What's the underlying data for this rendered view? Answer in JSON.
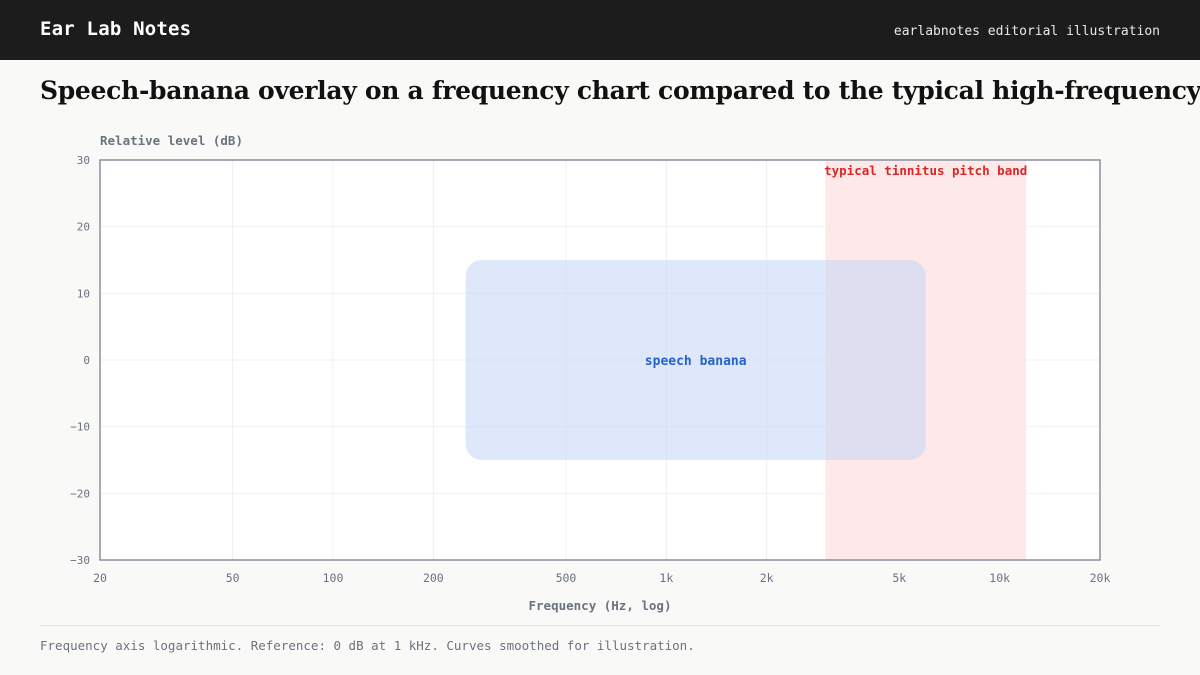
{
  "header": {
    "brand": "Ear Lab Notes",
    "tagline": "earlabnotes editorial illustration"
  },
  "title": "Speech-banana overlay on a frequency chart compared to the typical high-frequency band where tinnitus",
  "footnote": "Frequency axis logarithmic. Reference: 0 dB at 1 kHz. Curves smoothed for illustration.",
  "colors": {
    "speech_fill": "#dfe7f9",
    "speech_label": "#2563c9",
    "tinnitus_fill": "#fde8e8",
    "tinnitus_label": "#dc2626",
    "axis": "#9ca3af",
    "grid": "#eef0f3",
    "tick_text": "#6b7280"
  },
  "chart_data": {
    "type": "area",
    "xlabel": "Frequency (Hz, log)",
    "ylabel": "Relative level (dB)",
    "xscale": "log",
    "xlim": [
      20,
      20000
    ],
    "ylim": [
      -30,
      30
    ],
    "x_ticks": [
      {
        "value": 20,
        "label": "20"
      },
      {
        "value": 50,
        "label": "50"
      },
      {
        "value": 100,
        "label": "100"
      },
      {
        "value": 200,
        "label": "200"
      },
      {
        "value": 500,
        "label": "500"
      },
      {
        "value": 1000,
        "label": "1k"
      },
      {
        "value": 2000,
        "label": "2k"
      },
      {
        "value": 5000,
        "label": "5k"
      },
      {
        "value": 10000,
        "label": "10k"
      },
      {
        "value": 20000,
        "label": "20k"
      }
    ],
    "y_ticks": [
      {
        "value": 30,
        "label": "30"
      },
      {
        "value": 20,
        "label": "20"
      },
      {
        "value": 10,
        "label": "10"
      },
      {
        "value": 0,
        "label": "0"
      },
      {
        "value": -10,
        "label": "−10"
      },
      {
        "value": -20,
        "label": "−20"
      },
      {
        "value": -30,
        "label": "−30"
      }
    ],
    "grid": true,
    "regions": [
      {
        "name": "speech banana",
        "label": "speech banana",
        "x_range": [
          250,
          6000
        ],
        "y_range": [
          -15,
          15
        ]
      },
      {
        "name": "typical tinnitus pitch band",
        "label": "typical tinnitus pitch band",
        "x_range": [
          3000,
          12000
        ],
        "y_range": [
          -30,
          30
        ]
      }
    ]
  }
}
